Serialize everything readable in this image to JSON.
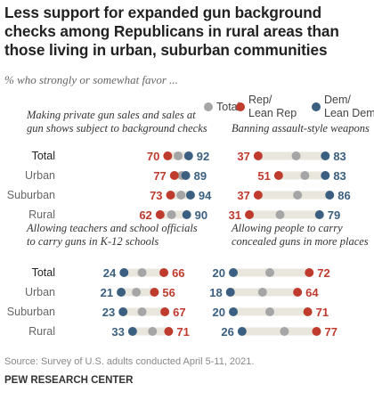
{
  "title": "Less support for expanded gun background checks among Republicans in rural areas than those living in urban, suburban communities",
  "subtitle": "% who strongly or somewhat favor ...",
  "source": "Source: Survey of U.S. adults conducted April 5-11, 2021.",
  "organization": "PEW RESEARCH CENTER",
  "colors": {
    "total": "#a5a5a5",
    "rep": "#bf3b2e",
    "dem": "#3b5f80",
    "bar": "#e9e6dd"
  },
  "chart_data": {
    "type": "dot",
    "legend": [
      {
        "key": "total",
        "label": "Total"
      },
      {
        "key": "rep",
        "label": "Rep/\nLean Rep"
      },
      {
        "key": "dem",
        "label": "Dem/\nLean Dem"
      }
    ],
    "categories": [
      "Total",
      "Urban",
      "Suburban",
      "Rural"
    ],
    "panels": [
      {
        "title": "Making private gun sales and sales at\ngun shows subject to background checks",
        "rows": [
          {
            "category": "Total",
            "total": 81,
            "rep": 70,
            "dem": 92
          },
          {
            "category": "Urban",
            "total": 85,
            "rep": 77,
            "dem": 89
          },
          {
            "category": "Suburban",
            "total": 84,
            "rep": 73,
            "dem": 94
          },
          {
            "category": "Rural",
            "total": 74,
            "rep": 62,
            "dem": 90
          }
        ]
      },
      {
        "title": "Banning assault-style weapons",
        "rows": [
          {
            "category": "Total",
            "total": 63,
            "rep": 37,
            "dem": 83
          },
          {
            "category": "Urban",
            "total": 69,
            "rep": 51,
            "dem": 83
          },
          {
            "category": "Suburban",
            "total": 64,
            "rep": 37,
            "dem": 86
          },
          {
            "category": "Rural",
            "total": 52,
            "rep": 31,
            "dem": 79
          }
        ]
      },
      {
        "title": "Allowing teachers and school officials\nto carry guns in K-12 schools",
        "rows": [
          {
            "category": "Total",
            "total": 43,
            "rep": 66,
            "dem": 24
          },
          {
            "category": "Urban",
            "total": 37,
            "rep": 56,
            "dem": 21
          },
          {
            "category": "Suburban",
            "total": 43,
            "rep": 67,
            "dem": 23
          },
          {
            "category": "Rural",
            "total": 54,
            "rep": 71,
            "dem": 33
          }
        ]
      },
      {
        "title": "Allowing people to carry\nconcealed guns in more places",
        "rows": [
          {
            "category": "Total",
            "total": 45,
            "rep": 72,
            "dem": 20
          },
          {
            "category": "Urban",
            "total": 40,
            "rep": 64,
            "dem": 18
          },
          {
            "category": "Suburban",
            "total": 45,
            "rep": 71,
            "dem": 20
          },
          {
            "category": "Rural",
            "total": 55,
            "rep": 77,
            "dem": 26
          }
        ]
      }
    ]
  }
}
